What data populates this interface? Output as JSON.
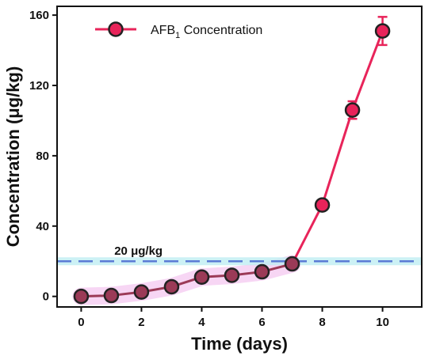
{
  "chart_data": {
    "type": "line",
    "xlabel": "Time (days)",
    "ylabel": "Concentration (μg/kg)",
    "xlim": [
      -0.8,
      11.3
    ],
    "ylim": [
      -6,
      165
    ],
    "xticks": [
      0,
      2,
      4,
      6,
      8,
      10
    ],
    "yticks": [
      0,
      40,
      80,
      120,
      160
    ],
    "grid": false,
    "legend_position": "top-left",
    "series": [
      {
        "name": "AFB₁ Concentration",
        "name_main": "AFB",
        "name_sub": "1",
        "name_rest": " Concentration",
        "color": "#e8245a",
        "marker_fill": "#e8245a",
        "marker_edge": "#222222",
        "x": [
          0,
          1,
          2,
          3,
          4,
          5,
          6,
          7,
          8,
          9,
          10
        ],
        "y": [
          0,
          0.5,
          2.5,
          5.5,
          11,
          12,
          14,
          18.5,
          52,
          106,
          151
        ],
        "error": [
          0,
          0,
          0,
          0,
          0,
          0,
          0,
          0,
          0,
          5,
          8
        ]
      }
    ],
    "reference_line": {
      "y": 20,
      "label": "20 μg/kg",
      "color": "#5b7bd5"
    }
  }
}
